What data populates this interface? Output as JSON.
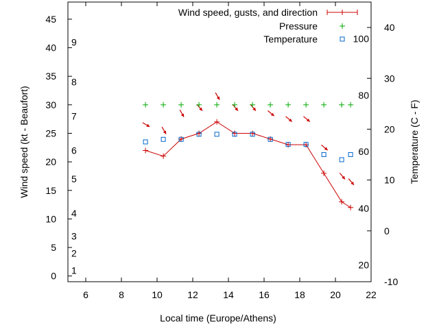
{
  "chart_data": {
    "type": "line",
    "xlabel": "Local time (Europe/Athens)",
    "ylabel": "Wind speed (kt - Beaufort)",
    "y2label": "Temperature (C - F)",
    "xlim": [
      5,
      22
    ],
    "ylim": [
      -1,
      48
    ],
    "y2lim": [
      -10,
      45
    ],
    "x_ticks": [
      6,
      8,
      10,
      12,
      14,
      16,
      18,
      20,
      22
    ],
    "y_ticks": [
      0,
      5,
      10,
      15,
      20,
      25,
      30,
      35,
      40,
      45
    ],
    "y2_ticks": [
      -10,
      0,
      10,
      20,
      30,
      40
    ],
    "beaufort_labels": [
      {
        "label": "1",
        "kt": 1
      },
      {
        "label": "2",
        "kt": 4
      },
      {
        "label": "3",
        "kt": 7
      },
      {
        "label": "4",
        "kt": 11
      },
      {
        "label": "5",
        "kt": 17
      },
      {
        "label": "6",
        "kt": 22
      },
      {
        "label": "7",
        "kt": 28
      },
      {
        "label": "8",
        "kt": 34
      },
      {
        "label": "9",
        "kt": 41
      }
    ],
    "fahrenheit_labels": [
      {
        "label": "20",
        "c": -6.7
      },
      {
        "label": "40",
        "c": 4.4
      },
      {
        "label": "60",
        "c": 15.6
      },
      {
        "label": "80",
        "c": 26.7
      },
      {
        "label": "100",
        "c": 37.8
      }
    ],
    "legend": [
      {
        "label": "Wind speed, gusts, and direction",
        "symbol": "line-plus",
        "color": "#cc0000"
      },
      {
        "label": "Pressure",
        "symbol": "plus",
        "color": "#00aa00"
      },
      {
        "label": "Temperature",
        "symbol": "square",
        "color": "#0066cc"
      }
    ],
    "series": [
      {
        "name": "Wind speed, gusts, and direction",
        "color": "#cc0000",
        "x": [
          9.35,
          10.35,
          11.35,
          12.35,
          13.35,
          14.35,
          15.35,
          16.35,
          17.35,
          18.35,
          19.35,
          20.35,
          20.85
        ],
        "y": [
          22,
          21,
          24,
          25,
          27,
          25,
          25,
          24,
          23,
          23,
          18,
          13,
          12
        ],
        "wind_from_deg": [
          300,
          330,
          330,
          320,
          330,
          320,
          320,
          310,
          310,
          310,
          310,
          320,
          320
        ]
      },
      {
        "name": "Pressure",
        "color": "#00aa00",
        "x": [
          9.35,
          10.35,
          11.35,
          12.35,
          13.35,
          14.35,
          15.35,
          16.35,
          17.35,
          18.35,
          19.35,
          20.35,
          20.85
        ],
        "y": [
          30,
          30,
          30,
          30,
          30,
          30,
          30,
          30,
          30,
          30,
          30,
          30,
          30
        ]
      },
      {
        "name": "Temperature",
        "color": "#0066cc",
        "x": [
          9.35,
          10.35,
          11.35,
          12.35,
          13.35,
          14.35,
          15.35,
          16.35,
          17.35,
          18.35,
          19.35,
          20.35,
          20.85
        ],
        "y2": [
          17.5,
          18.0,
          18.0,
          19.0,
          19.0,
          19.0,
          19.0,
          18.0,
          17.0,
          17.0,
          15.0,
          14.0,
          15.0
        ]
      }
    ]
  }
}
